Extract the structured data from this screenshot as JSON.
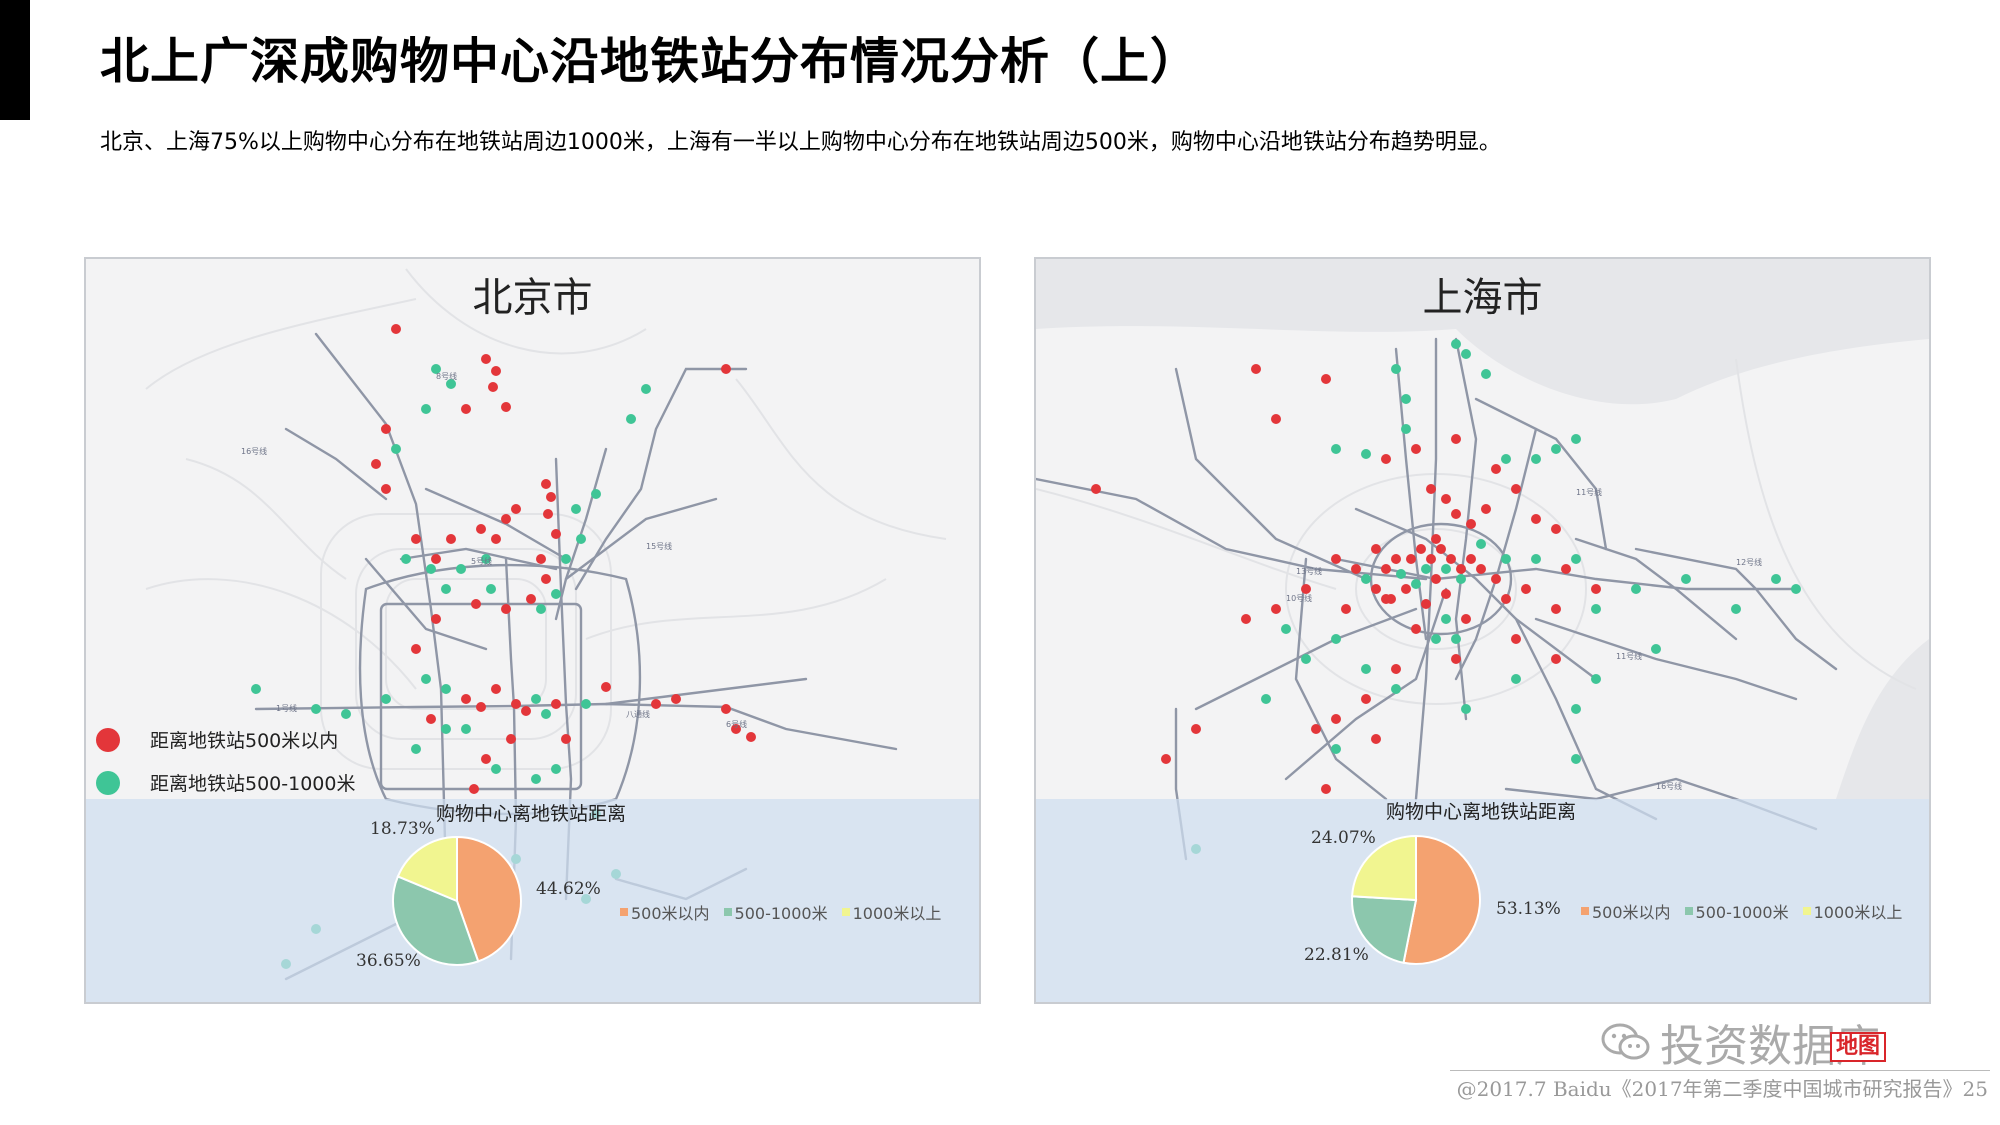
{
  "header": {
    "title": "北上广深成购物中心沿地铁站分布情况分析（上）",
    "subtitle": "北京、上海75%以上购物中心分布在地铁站周边1000米，上海有一半以上购物中心分布在地铁站周边500米，购物中心沿地铁站分布趋势明显。"
  },
  "map_legend": {
    "red_label": "距离地铁站500米以内",
    "green_label": "距离地铁站500-1000米"
  },
  "colors": {
    "red_dot": "#e3363a",
    "green_dot": "#3fc596",
    "slice_500": "#f4a270",
    "slice_1000": "#8cc7ad",
    "slice_over": "#f1f590",
    "map_bg": "#f3f3f4",
    "metro_line": "#8f96a6"
  },
  "chart_data": [
    {
      "type": "pie",
      "city": "北京市",
      "title": "购物中心离地铁站距离",
      "categories": [
        "500米以内",
        "500-1000米",
        "1000米以上"
      ],
      "values": [
        44.62,
        36.65,
        18.73
      ],
      "labels": [
        "44.62%",
        "36.65%",
        "18.73%"
      ]
    },
    {
      "type": "pie",
      "city": "上海市",
      "title": "购物中心离地铁站距离",
      "categories": [
        "500米以内",
        "500-1000米",
        "1000米以上"
      ],
      "values": [
        53.13,
        22.81,
        24.07
      ],
      "labels": [
        "53.13%",
        "22.81%",
        "24.07%"
      ]
    }
  ],
  "watermark": {
    "text": "投资数据库",
    "badge": "地图"
  },
  "footer": {
    "text": "@2017.7 Baidu《2017年第二季度中国城市研究报告》25"
  }
}
